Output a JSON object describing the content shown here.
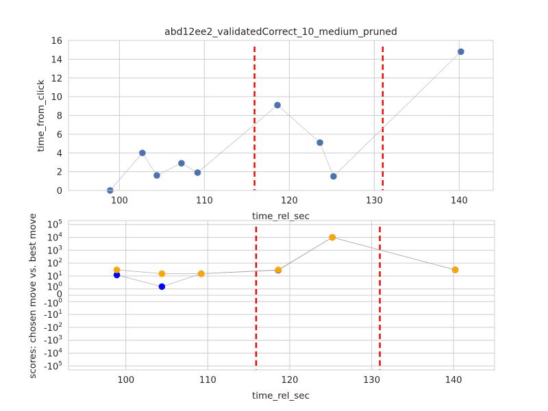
{
  "chart_data": [
    {
      "type": "scatter",
      "title": "abd12ee2_validatedCorrect_10_medium_pruned",
      "xlabel": "time_rel_sec",
      "ylabel": "time_from_click",
      "xlim": [
        94,
        144
      ],
      "ylim": [
        0,
        16
      ],
      "xticks": [
        100,
        110,
        120,
        130,
        140
      ],
      "xtick_labels": [
        "100",
        "110",
        "120",
        "130",
        "140"
      ],
      "yticks": [
        0,
        2,
        4,
        6,
        8,
        10,
        12,
        14,
        16
      ],
      "ytick_labels": [
        "0",
        "2",
        "4",
        "6",
        "8",
        "10",
        "12",
        "14",
        "16"
      ],
      "grid": true,
      "series": [
        {
          "color": "#4c72b0",
          "x": [
            98.9,
            102.7,
            104.4,
            107.3,
            109.2,
            118.6,
            123.6,
            125.2,
            140.2
          ],
          "y": [
            0.0,
            4.0,
            1.6,
            2.9,
            1.9,
            9.1,
            5.1,
            1.5,
            14.8
          ]
        }
      ],
      "vlines": {
        "x": [
          115.9,
          131.0
        ],
        "color": "#ff0000",
        "style": "dashed"
      }
    },
    {
      "type": "scatter",
      "xlabel": "time_rel_sec",
      "ylabel": "scores: chosen move vs. best move",
      "yscale": "symlog",
      "xlim": [
        93,
        145
      ],
      "xticks": [
        100,
        110,
        120,
        130,
        140
      ],
      "xtick_labels": [
        "100",
        "110",
        "120",
        "130",
        "140"
      ],
      "ytick_labels": [
        "-10^5",
        "-10^4",
        "-10^3",
        "-10^2",
        "-10^1",
        "-10^0",
        "0",
        "10^0",
        "10^1",
        "10^2",
        "10^3",
        "10^4",
        "10^5"
      ],
      "grid": true,
      "series": [
        {
          "color": "#0000ff",
          "x": [
            98.9,
            104.4,
            109.2,
            118.6,
            125.2,
            140.2
          ],
          "y": [
            12,
            1.5,
            15,
            28,
            10000,
            30
          ]
        },
        {
          "color": "#ffa500",
          "x": [
            98.9,
            104.4,
            109.2,
            118.6,
            125.2,
            140.2
          ],
          "y": [
            30,
            15,
            15,
            30,
            10000,
            30
          ]
        }
      ],
      "vlines": {
        "x": [
          115.9,
          131.0
        ],
        "color": "#ff0000",
        "style": "dashed"
      }
    }
  ]
}
